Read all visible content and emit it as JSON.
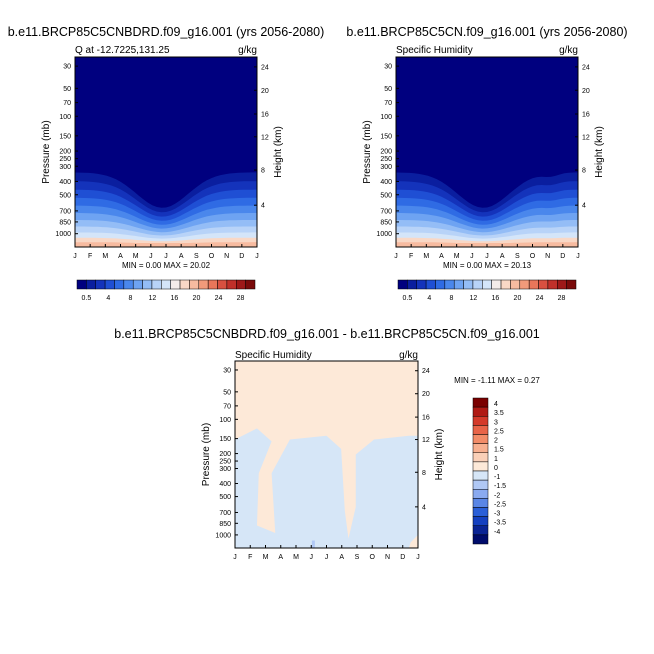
{
  "palettes": {
    "abs": [
      "#00007f",
      "#0a1e9f",
      "#1433bb",
      "#1f4fd4",
      "#2f6be4",
      "#4a87ec",
      "#6ea3f2",
      "#94bdf6",
      "#b8d3f8",
      "#d4e5f9",
      "#f3ecea",
      "#f9d8c6",
      "#f7bba0",
      "#f29a7a",
      "#e8765a",
      "#d85040",
      "#c0302a",
      "#9e1818",
      "#7a0a0a"
    ],
    "diff": [
      "#000c6b",
      "#0a2494",
      "#1440c0",
      "#2a5fd8",
      "#5a86e6",
      "#8aaaf0",
      "#b0c8f5",
      "#d6e6f7",
      "#fde9d8",
      "#fad0b8",
      "#f7b090",
      "#f28c68",
      "#e86448",
      "#d43a2a",
      "#b01a14",
      "#7a0000"
    ]
  },
  "chart_data": [
    {
      "type": "heatmap",
      "title": "b.e11.BRCP85C5CNBDRD.f09_g16.001 (yrs 2056-2080)",
      "subtitle_left": "Q at -12.7225,131.25",
      "subtitle_right": "g/kg",
      "ylabel": "Pressure (mb)",
      "ylabel_right": "Height (km)",
      "x_ticks": [
        "J",
        "F",
        "M",
        "A",
        "M",
        "J",
        "J",
        "A",
        "S",
        "O",
        "N",
        "D",
        "J"
      ],
      "y_ticks": [
        "30",
        "50",
        "70",
        "100",
        "150",
        "200",
        "250",
        "300",
        "400",
        "500",
        "700",
        "850",
        "1000"
      ],
      "y_ticks_right": [
        "24",
        "20",
        "16",
        "12",
        "8",
        "4"
      ],
      "stats": "MIN =   0.00 MAX =  20.02",
      "colorbar_labels": [
        "0.5",
        "4",
        "8",
        "12",
        "16",
        "20",
        "24",
        "28"
      ]
    },
    {
      "type": "heatmap",
      "title": "b.e11.BRCP85C5CN.f09_g16.001 (yrs 2056-2080)",
      "subtitle_left": "Specific Humidity",
      "subtitle_right": "g/kg",
      "ylabel": "Pressure (mb)",
      "ylabel_right": "Height (km)",
      "x_ticks": [
        "J",
        "F",
        "M",
        "A",
        "M",
        "J",
        "J",
        "A",
        "S",
        "O",
        "N",
        "D",
        "J"
      ],
      "y_ticks": [
        "30",
        "50",
        "70",
        "100",
        "150",
        "200",
        "250",
        "300",
        "400",
        "500",
        "700",
        "850",
        "1000"
      ],
      "y_ticks_right": [
        "24",
        "20",
        "16",
        "12",
        "8",
        "4"
      ],
      "stats": "MIN =   0.00 MAX =  20.13",
      "colorbar_labels": [
        "0.5",
        "4",
        "8",
        "12",
        "16",
        "20",
        "24",
        "28"
      ]
    },
    {
      "type": "heatmap",
      "title": "b.e11.BRCP85C5CNBDRD.f09_g16.001 - b.e11.BRCP85C5CN.f09_g16.001",
      "subtitle_left": "Specific Humidity",
      "subtitle_right": "g/kg",
      "ylabel": "Pressure (mb)",
      "ylabel_right": "Height (km)",
      "x_ticks": [
        "J",
        "F",
        "M",
        "A",
        "M",
        "J",
        "J",
        "A",
        "S",
        "O",
        "N",
        "D",
        "J"
      ],
      "y_ticks": [
        "30",
        "50",
        "70",
        "100",
        "150",
        "200",
        "250",
        "300",
        "400",
        "500",
        "700",
        "850",
        "1000"
      ],
      "y_ticks_right": [
        "24",
        "20",
        "16",
        "12",
        "8",
        "4"
      ],
      "stats": "MIN =  -1.11 MAX =   0.27",
      "colorbar_labels": [
        "4",
        "3.5",
        "3",
        "2.5",
        "2",
        "1.5",
        "1",
        "0",
        "-1",
        "-1.5",
        "-2",
        "-2.5",
        "-3",
        "-3.5",
        "-4"
      ]
    }
  ]
}
